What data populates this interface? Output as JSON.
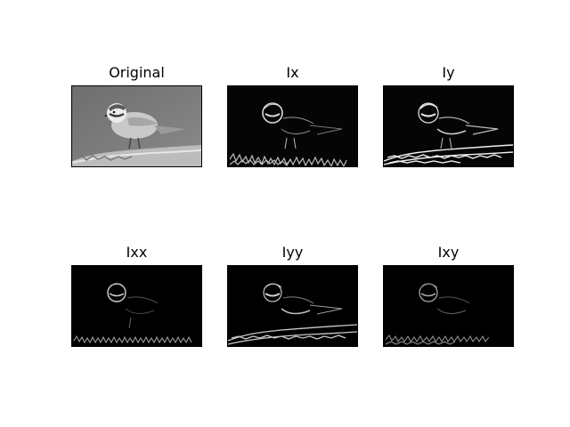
{
  "figure": {
    "background": "#ffffff",
    "panels": [
      {
        "key": "original",
        "title": "Original",
        "mode": "grayscale"
      },
      {
        "key": "ix",
        "title": "Ix",
        "mode": "edges-x"
      },
      {
        "key": "iy",
        "title": "Iy",
        "mode": "edges-y"
      },
      {
        "key": "ixx",
        "title": "Ixx",
        "mode": "edges-xx"
      },
      {
        "key": "iyy",
        "title": "Iyy",
        "mode": "edges-yy"
      },
      {
        "key": "ixy",
        "title": "Ixy",
        "mode": "edges-xy"
      }
    ]
  }
}
